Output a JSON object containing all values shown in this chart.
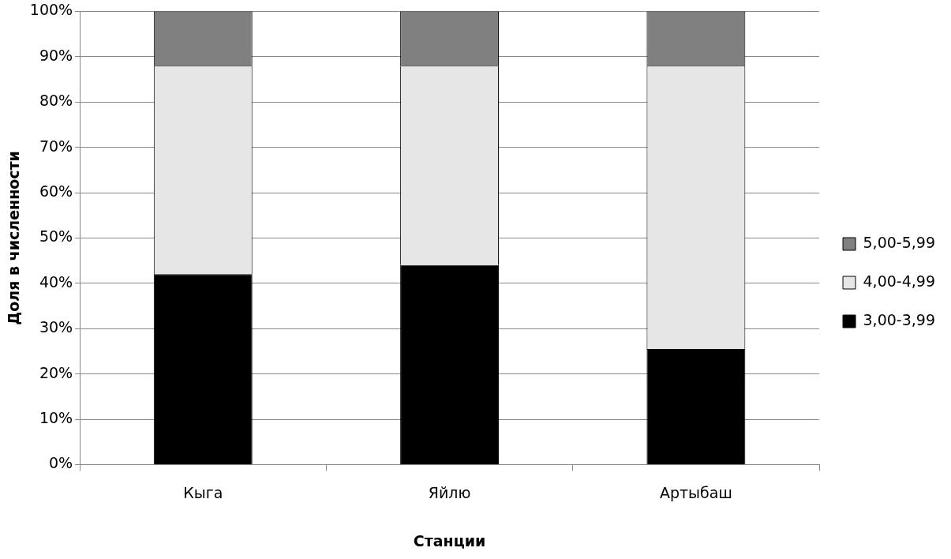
{
  "chart_data": {
    "type": "bar",
    "stacked": true,
    "xlabel": "Станции",
    "ylabel": "Доля в численности",
    "categories": [
      "Кыга",
      "Яйлю",
      "Артыбаш"
    ],
    "series": [
      {
        "name": "3,00-3,99",
        "color": "#000000",
        "values": [
          42,
          44,
          25.5
        ]
      },
      {
        "name": "4,00-4,99",
        "color": "#e6e6e6",
        "values": [
          46,
          44,
          62.5
        ]
      },
      {
        "name": "5,00-5,99",
        "color": "#808080",
        "values": [
          12,
          12,
          12
        ]
      }
    ],
    "ylim": [
      0,
      100
    ],
    "yticks": [
      {
        "value": 0,
        "label": "0%"
      },
      {
        "value": 10,
        "label": "10%"
      },
      {
        "value": 20,
        "label": "20%"
      },
      {
        "value": 30,
        "label": "30%"
      },
      {
        "value": 40,
        "label": "40%"
      },
      {
        "value": 50,
        "label": "50%"
      },
      {
        "value": 60,
        "label": "60%"
      },
      {
        "value": 70,
        "label": "70%"
      },
      {
        "value": 80,
        "label": "80%"
      },
      {
        "value": 90,
        "label": "90%"
      },
      {
        "value": 100,
        "label": "100%"
      }
    ],
    "grid": "y",
    "legend": "right"
  }
}
